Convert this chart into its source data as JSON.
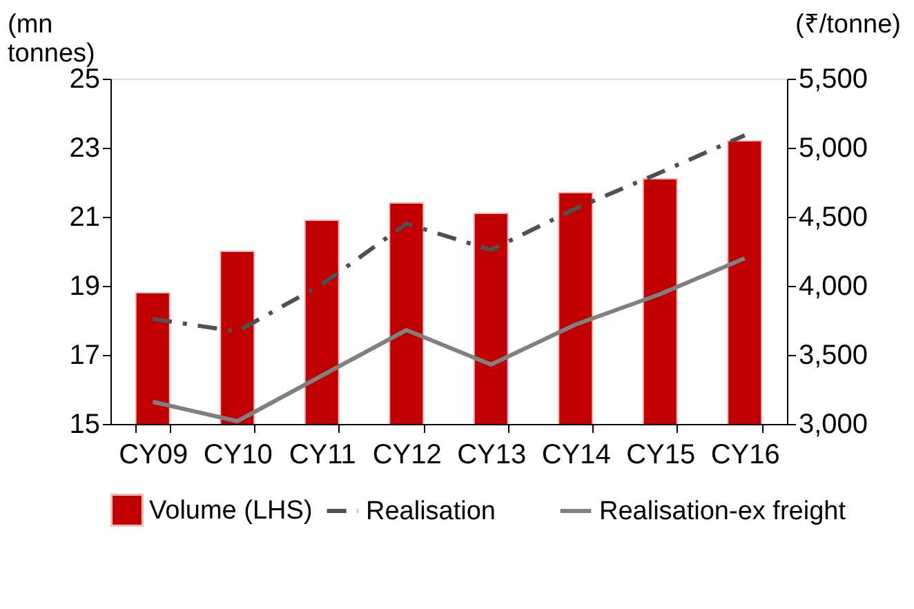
{
  "chart_data": {
    "type": "bar",
    "categories": [
      "CY09",
      "CY10",
      "CY11",
      "CY12",
      "CY13",
      "CY14",
      "CY15",
      "CY16"
    ],
    "ylabel": "(mn\ntonnes)",
    "y2label": "(₹/tonne)",
    "ylim": [
      15,
      25
    ],
    "yticks": [
      15,
      17,
      19,
      21,
      23,
      25
    ],
    "y2lim": [
      3000,
      5500
    ],
    "y2ticks": [
      {
        "value": 3000,
        "label": "3,000"
      },
      {
        "value": 3500,
        "label": "3,500"
      },
      {
        "value": 4000,
        "label": "4,000"
      },
      {
        "value": 4500,
        "label": "4,500"
      },
      {
        "value": 5000,
        "label": "5,000"
      },
      {
        "value": 5500,
        "label": "5,500"
      }
    ],
    "grid": false,
    "legend": "bottom",
    "series": [
      {
        "name": "Volume (LHS)",
        "color": "#c00000",
        "values": [
          18.8,
          20.0,
          20.9,
          21.4,
          21.1,
          21.7,
          22.1,
          23.2
        ]
      },
      {
        "name": "Realisation",
        "type": "line",
        "axis": "y2",
        "line_style": "dashed",
        "color": "#505050",
        "values": [
          3760,
          3670,
          4010,
          4450,
          4260,
          4560,
          4820,
          5090
        ]
      },
      {
        "name": "Realisation-ex freight",
        "type": "line",
        "axis": "y2",
        "line_style": "solid",
        "color": "#808080",
        "values": [
          3160,
          3020,
          3350,
          3680,
          3430,
          3720,
          3940,
          4200
        ]
      }
    ]
  }
}
